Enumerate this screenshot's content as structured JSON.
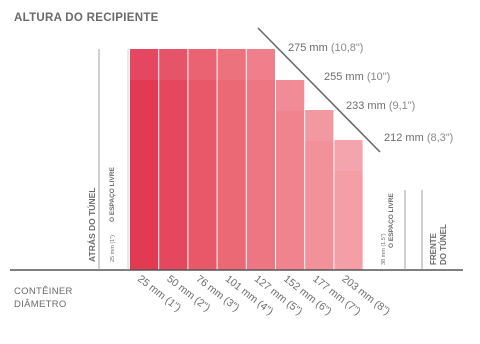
{
  "title": "ALTURA DO RECIPIENTE",
  "container_label": [
    "CONTÊINER",
    "DIÂMETRO"
  ],
  "left_side": {
    "label": "ATRÁS DO TÚNEL",
    "space_label": "O ESPAÇO LIVRE",
    "space_size": "25 mm (1\")"
  },
  "right_side": {
    "label": [
      "FRENTE",
      "DO TÚNEL"
    ],
    "space_label": "O ESPAÇO LIVRE",
    "space_size": "38 mm (1.5\")"
  },
  "colors": [
    "#e23a53",
    "#e5475e",
    "#e85869",
    "#eb6875",
    "#ee7682",
    "#f0838e",
    "#f2919a",
    "#f49ea6"
  ],
  "diameters": [
    "25 mm (1\")",
    "50 mm (2\")",
    "76 mm (3\")",
    "101 mm (4\")",
    "127 mm (5\")",
    "152 mm (6\")",
    "177 mm (7\")",
    "203 mm (8\")"
  ],
  "heights": [
    {
      "mm": "275 mm",
      "in": "(10,8\")"
    },
    {
      "mm": "255 mm",
      "in": "(10\")"
    },
    {
      "mm": "233 mm",
      "in": "(9,1\")"
    },
    {
      "mm": "212 mm",
      "in": "(8,3\")"
    }
  ],
  "bar_height_index": [
    0,
    0,
    0,
    0,
    0,
    1,
    2,
    3
  ]
}
